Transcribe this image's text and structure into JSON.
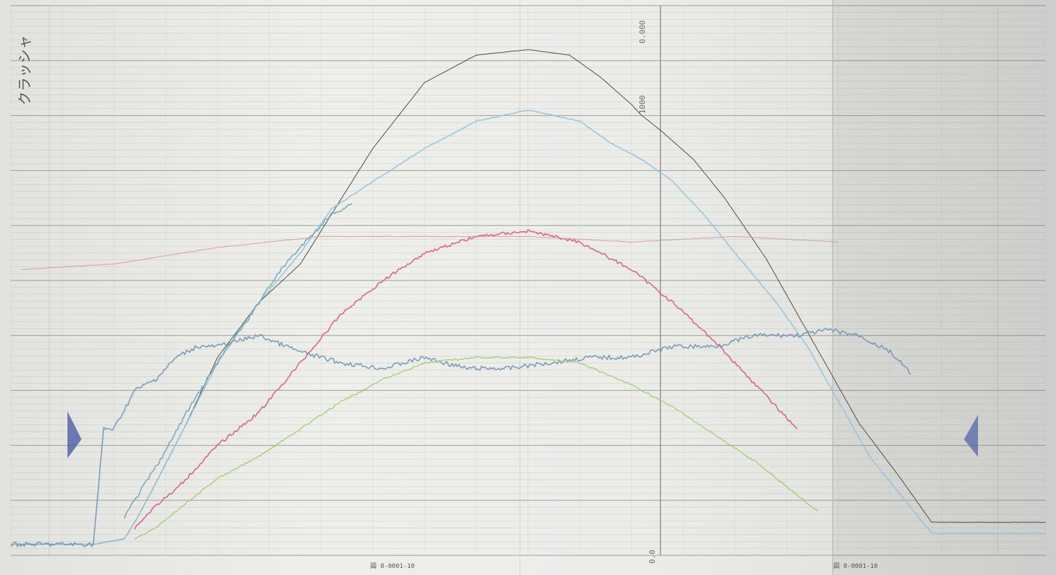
{
  "note": "クラッシャ",
  "footer": [
    "図 8-0001-10",
    "図 8-0001-10"
  ],
  "center_ticks": [
    "0.000",
    "1000"
  ],
  "bottom_ticks": [
    "0.0"
  ],
  "colors": {
    "paper": "#ecece9",
    "grid_minor": "#b8b8b4",
    "grid_major": "#8a8a86",
    "black_trace": "#3a3a3a",
    "light_blue": "#8fc3de",
    "slate_blue": "#6e93b8",
    "teal": "#6aa6b5",
    "pink": "#d9538a",
    "green": "#9ccc6a",
    "red_faint": "#d9949a",
    "navy_marker": "#4a5fa8"
  },
  "chart_data": {
    "type": "line",
    "title": "",
    "xlabel": "",
    "ylabel": "",
    "xlim": [
      0,
      100
    ],
    "ylim": [
      0,
      100
    ],
    "grid": true,
    "series": [
      {
        "color_key": "black_trace",
        "x": [
          0,
          8,
          11,
          12,
          14,
          17,
          20,
          24,
          28,
          31,
          35,
          40,
          45,
          50,
          54,
          57,
          60,
          61,
          63,
          66,
          69,
          73,
          76,
          79,
          82,
          86,
          89,
          100
        ],
        "y": [
          2,
          2,
          3,
          6,
          13,
          24,
          36,
          46,
          53,
          62,
          74,
          86,
          91,
          92,
          91,
          87,
          82,
          80,
          77,
          72,
          65,
          54,
          44,
          34,
          24,
          14,
          6,
          6
        ]
      },
      {
        "color_key": "light_blue",
        "x": [
          0,
          8,
          11,
          12,
          14,
          17,
          20,
          24,
          28,
          31,
          35,
          40,
          45,
          50,
          55,
          58,
          61,
          64,
          67,
          70,
          74,
          77,
          80,
          83,
          86,
          89,
          100
        ],
        "y": [
          2,
          2,
          3,
          6,
          13,
          24,
          35,
          46,
          55,
          63,
          68,
          74,
          79,
          81,
          79,
          75,
          72,
          68,
          62,
          55,
          46,
          38,
          28,
          18,
          11,
          4,
          4
        ]
      },
      {
        "color_key": "slate_blue",
        "x": [
          0,
          8,
          9,
          10,
          12,
          14,
          16,
          18,
          20,
          24,
          28,
          32,
          36,
          40,
          44,
          48,
          52,
          56,
          60,
          64,
          68,
          72,
          76,
          79,
          82,
          85,
          87
        ],
        "y": [
          2,
          2,
          23,
          23,
          30,
          32,
          36,
          38,
          38,
          40,
          37,
          35,
          34,
          36,
          34,
          34,
          35,
          36,
          36,
          38,
          38,
          40,
          40,
          41,
          40,
          37,
          33
        ]
      },
      {
        "color_key": "teal",
        "x": [
          11,
          13,
          15,
          17,
          19,
          21,
          23,
          25,
          27,
          29,
          31,
          33
        ],
        "y": [
          7,
          13,
          19,
          26,
          32,
          38,
          43,
          49,
          54,
          58,
          62,
          64
        ]
      },
      {
        "color_key": "pink",
        "x": [
          12,
          14,
          16,
          18,
          20,
          24,
          28,
          32,
          36,
          40,
          45,
          50,
          55,
          60,
          64,
          68,
          72,
          76
        ],
        "y": [
          5,
          9,
          12,
          16,
          20,
          26,
          35,
          44,
          50,
          55,
          58,
          59,
          57,
          52,
          46,
          39,
          31,
          23
        ]
      },
      {
        "color_key": "green",
        "x": [
          12,
          14,
          16,
          18,
          20,
          24,
          28,
          32,
          36,
          40,
          45,
          50,
          55,
          60,
          64,
          68,
          72,
          76,
          78
        ],
        "y": [
          3,
          5,
          8,
          11,
          14,
          18,
          23,
          28,
          32,
          35,
          36,
          36,
          35,
          31,
          27,
          22,
          17,
          11,
          8
        ]
      },
      {
        "color_key": "red_faint",
        "x": [
          1,
          10,
          20,
          30,
          40,
          50,
          60,
          70,
          80
        ],
        "y": [
          52,
          53,
          56,
          58,
          58,
          58,
          57,
          58,
          57
        ]
      }
    ]
  }
}
